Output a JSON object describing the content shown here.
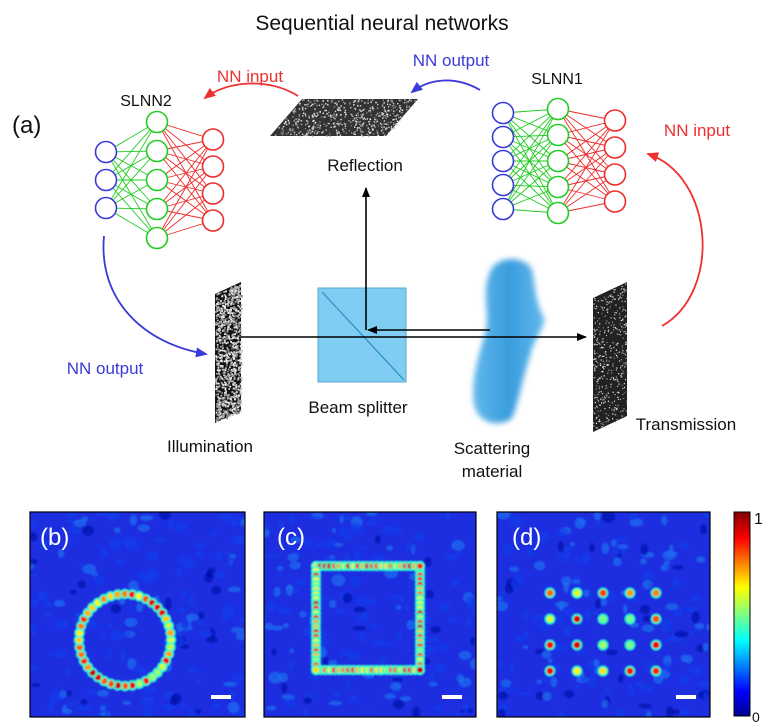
{
  "title": "Sequential neural networks",
  "panel_a_label": "(a)",
  "panels": [
    {
      "label": "(b)",
      "pattern": "circle"
    },
    {
      "label": "(c)",
      "pattern": "square"
    },
    {
      "label": "(d)",
      "pattern": "dot-grid"
    }
  ],
  "networks": [
    {
      "name": "SLNN2",
      "layers": [
        3,
        5,
        4
      ]
    },
    {
      "name": "SLNN1",
      "layers": [
        5,
        5,
        4
      ]
    }
  ],
  "flows": {
    "nn_input_1": "NN input",
    "nn_input_2": "NN input",
    "nn_output_1": "NN output",
    "nn_output_2": "NN output"
  },
  "components": {
    "reflection": "Reflection",
    "illumination": "Illumination",
    "beam_splitter": "Beam splitter",
    "scattering_1": "Scattering",
    "scattering_2": "material",
    "transmission": "Transmission"
  },
  "colorbar": {
    "max_label": "1",
    "min_label": "0"
  },
  "colors": {
    "input_node": "#3a3ad8",
    "hidden_node": "#22cc22",
    "output_node": "#ee2a2a",
    "input_arrow": "#ee3030",
    "output_arrow": "#3a3ad8",
    "beam_splitter": "#7fcdf2",
    "scatterer": "#3aa0dc",
    "field_background": "#1c2ee0"
  }
}
